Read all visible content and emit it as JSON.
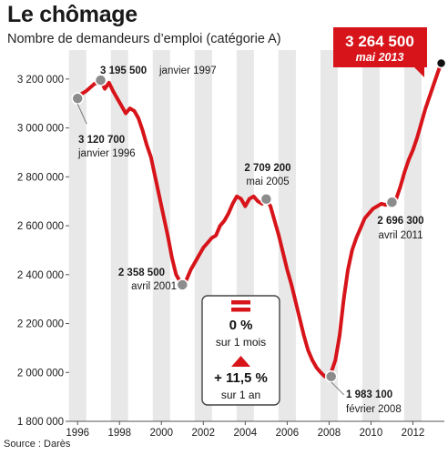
{
  "title": "Le chômage",
  "subtitle": "Nombre de demandeurs d’emploi (catégorie A)",
  "source": "Source : Darès",
  "colors": {
    "line": "#d7141a",
    "band": "#e8e8e8",
    "marker": "#8c8c8c",
    "latest_marker": "#111111",
    "box_border": "#444444",
    "callout_bg": "#d7141a",
    "callout_text": "#ffffff"
  },
  "latest": {
    "value": "3 264 500",
    "date": "mai 2013"
  },
  "summary": {
    "month_icon": "equals-icon",
    "month_value": "0 %",
    "month_label": "sur 1 mois",
    "year_icon": "up-triangle-icon",
    "year_value": "+ 11,5 %",
    "year_label": "sur 1 an"
  },
  "chart_data": {
    "type": "line",
    "title": "Le chômage",
    "subtitle": "Nombre de demandeurs d’emploi (catégorie A)",
    "xlim": [
      1995.6,
      2013.5
    ],
    "ylim": [
      1800000,
      3300000
    ],
    "yticks": [
      1800000,
      2000000,
      2200000,
      2400000,
      2600000,
      2800000,
      3000000,
      3200000
    ],
    "ytick_labels": [
      "1 800 000",
      "2 000 000",
      "2 200 000",
      "2 400 000",
      "2 600 000",
      "2 800 000",
      "3 000 000",
      "3 200 000"
    ],
    "xticks": [
      1996,
      1998,
      2000,
      2002,
      2004,
      2006,
      2008,
      2010,
      2012
    ],
    "xtick_labels": [
      "1996",
      "1998",
      "2000",
      "2002",
      "2004",
      "2006",
      "2008",
      "2010",
      "2012"
    ],
    "grid": false,
    "series": [
      {
        "x": [
          1996.0,
          1996.2,
          1996.4,
          1996.6,
          1996.8,
          1997.0,
          1997.1,
          1997.3,
          1997.5,
          1997.7,
          1997.9,
          1998.1,
          1998.3,
          1998.5,
          1998.7,
          1998.9,
          1999.1,
          1999.3,
          1999.5,
          1999.7,
          1999.9,
          2000.1,
          2000.3,
          2000.5,
          2000.7,
          2000.9,
          2001.0,
          2001.2,
          2001.4,
          2001.6,
          2001.8,
          2002.0,
          2002.2,
          2002.4,
          2002.6,
          2002.8,
          2003.0,
          2003.2,
          2003.4,
          2003.6,
          2003.8,
          2004.0,
          2004.2,
          2004.4,
          2004.6,
          2004.8,
          2005.0,
          2005.2,
          2005.4,
          2005.6,
          2005.8,
          2006.0,
          2006.2,
          2006.4,
          2006.6,
          2006.8,
          2007.0,
          2007.2,
          2007.4,
          2007.6,
          2007.8,
          2008.0,
          2008.1,
          2008.3,
          2008.5,
          2008.7,
          2008.9,
          2009.1,
          2009.3,
          2009.5,
          2009.7,
          2009.9,
          2010.1,
          2010.3,
          2010.5,
          2010.7,
          2010.9,
          2011.0,
          2011.2,
          2011.4,
          2011.6,
          2011.8,
          2012.0,
          2012.2,
          2012.4,
          2012.6,
          2012.8,
          2013.0,
          2013.2,
          2013.35
        ],
        "values": [
          3120700,
          3140000,
          3150000,
          3165000,
          3180000,
          3185000,
          3195500,
          3160000,
          3185000,
          3150000,
          3120000,
          3090000,
          3060000,
          3080000,
          3070000,
          3040000,
          2990000,
          2930000,
          2880000,
          2800000,
          2720000,
          2640000,
          2560000,
          2470000,
          2400000,
          2370000,
          2358500,
          2380000,
          2420000,
          2450000,
          2480000,
          2510000,
          2530000,
          2550000,
          2560000,
          2600000,
          2620000,
          2650000,
          2690000,
          2720000,
          2710000,
          2680000,
          2710000,
          2720000,
          2700000,
          2690000,
          2709200,
          2680000,
          2620000,
          2560000,
          2490000,
          2420000,
          2360000,
          2290000,
          2220000,
          2150000,
          2090000,
          2050000,
          2020000,
          2000000,
          1983100,
          1983100,
          2000000,
          2050000,
          2150000,
          2300000,
          2420000,
          2500000,
          2550000,
          2590000,
          2630000,
          2650000,
          2670000,
          2680000,
          2690000,
          2685000,
          2700000,
          2696300,
          2710000,
          2760000,
          2820000,
          2870000,
          2910000,
          2960000,
          3020000,
          3080000,
          3130000,
          3180000,
          3230000,
          3264500
        ]
      }
    ],
    "annotations": [
      {
        "id": "jan1996",
        "x": 1996.0,
        "y": 3120700,
        "value": "3 120 700",
        "date": "janvier 1996"
      },
      {
        "id": "jan1997",
        "x": 1997.1,
        "y": 3195500,
        "value": "3 195 500",
        "date": "janvier 1997"
      },
      {
        "id": "apr2001",
        "x": 2001.0,
        "y": 2358500,
        "value": "2 358 500",
        "date": "avril 2001"
      },
      {
        "id": "may2005",
        "x": 2005.0,
        "y": 2709200,
        "value": "2 709 200",
        "date": "mai 2005"
      },
      {
        "id": "feb2008",
        "x": 2008.1,
        "y": 1983100,
        "value": "1 983 100",
        "date": "février 2008"
      },
      {
        "id": "apr2011",
        "x": 2011.0,
        "y": 2696300,
        "value": "2 696 300",
        "date": "avril 2011"
      },
      {
        "id": "may2013",
        "x": 2013.35,
        "y": 3264500,
        "value": "3 264 500",
        "date": "mai 2013"
      }
    ]
  }
}
